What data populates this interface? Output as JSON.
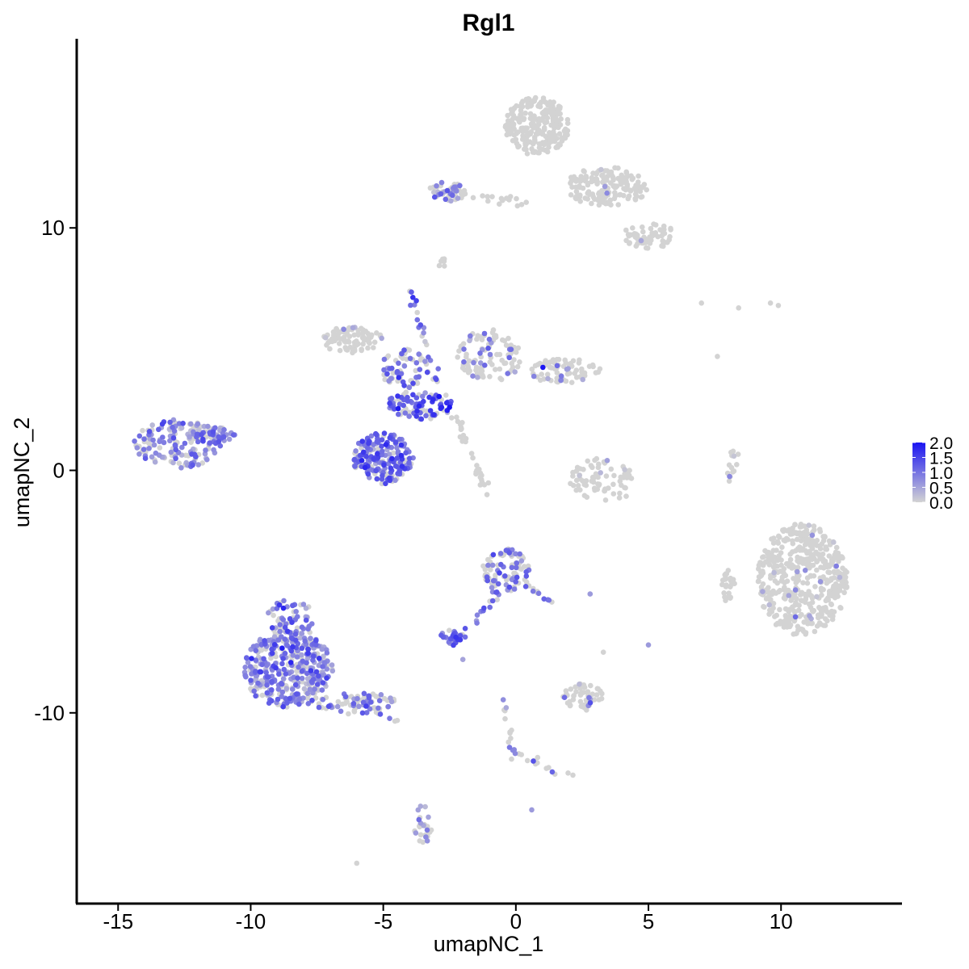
{
  "chart_data": {
    "type": "scatter",
    "title": "Rgl1",
    "xlabel": "umapNC_1",
    "ylabel": "umapNC_2",
    "xlim": [
      -16.5,
      14.5
    ],
    "ylim": [
      -17.8,
      17.8
    ],
    "x_ticks": [
      -15,
      -10,
      -5,
      0,
      5,
      10
    ],
    "y_ticks": [
      -10,
      0,
      10
    ],
    "x_tick_labels": [
      "-15",
      "-10",
      "-5",
      "0",
      "5",
      "10"
    ],
    "y_tick_labels": [
      "-10",
      "0",
      "10"
    ],
    "grid": false,
    "legend_placement": "right",
    "colorbar": {
      "min": 0.0,
      "max": 2.0,
      "low_color": "#d3d3d3",
      "high_color": "#1a14f2",
      "tick_values": [
        2.0,
        1.5,
        1.0,
        0.5,
        0.0
      ],
      "tick_labels": [
        "2.0",
        "1.5",
        "1.0",
        "0.5",
        "0.0"
      ]
    },
    "clusters": [
      {
        "cx": -12.7,
        "cy": 1.1,
        "rx": 1.7,
        "ry": 1.0,
        "n": 160,
        "expr_frac": 0.7,
        "expr_mean": 0.8,
        "shape": "blob"
      },
      {
        "cx": -11.4,
        "cy": 1.5,
        "rx": 0.8,
        "ry": 0.35,
        "n": 35,
        "expr_frac": 0.8,
        "expr_mean": 0.9,
        "shape": "blob"
      },
      {
        "cx": -8.6,
        "cy": -8.2,
        "rx": 1.7,
        "ry": 1.6,
        "n": 380,
        "expr_frac": 0.72,
        "expr_mean": 0.85,
        "shape": "blob"
      },
      {
        "cx": -8.5,
        "cy": -6.2,
        "rx": 0.9,
        "ry": 0.9,
        "n": 60,
        "expr_frac": 0.6,
        "expr_mean": 0.8,
        "shape": "blob"
      },
      {
        "cx": -6.0,
        "cy": -9.6,
        "rx": 1.6,
        "ry": 0.45,
        "n": 70,
        "expr_frac": 0.5,
        "expr_mean": 0.8,
        "shape": "blob"
      },
      {
        "cx": -5.0,
        "cy": 0.5,
        "rx": 1.15,
        "ry": 1.05,
        "n": 200,
        "expr_frac": 0.75,
        "expr_mean": 1.1,
        "shape": "blob"
      },
      {
        "cx": -3.6,
        "cy": 2.7,
        "rx": 1.3,
        "ry": 0.6,
        "n": 90,
        "expr_frac": 0.7,
        "expr_mean": 1.3,
        "shape": "blob"
      },
      {
        "cx": -4.2,
        "cy": 4.2,
        "rx": 0.9,
        "ry": 0.8,
        "n": 70,
        "expr_frac": 0.45,
        "expr_mean": 1.0,
        "shape": "blob"
      },
      {
        "cx": -6.2,
        "cy": 5.4,
        "rx": 1.2,
        "ry": 0.55,
        "n": 90,
        "expr_frac": 0.05,
        "expr_mean": 0.5,
        "shape": "blob"
      },
      {
        "cx": -1.0,
        "cy": 4.7,
        "rx": 1.2,
        "ry": 1.1,
        "n": 100,
        "expr_frac": 0.2,
        "expr_mean": 0.7,
        "shape": "blob"
      },
      {
        "cx": 1.8,
        "cy": 4.1,
        "rx": 1.4,
        "ry": 0.5,
        "n": 70,
        "expr_frac": 0.1,
        "expr_mean": 0.6,
        "shape": "blob"
      },
      {
        "cx": 0.8,
        "cy": 14.2,
        "rx": 1.2,
        "ry": 1.2,
        "n": 230,
        "expr_frac": 0.0,
        "expr_mean": 0.5,
        "shape": "blob"
      },
      {
        "cx": 3.4,
        "cy": 11.7,
        "rx": 1.6,
        "ry": 0.8,
        "n": 160,
        "expr_frac": 0.02,
        "expr_mean": 0.5,
        "shape": "blob"
      },
      {
        "cx": 5.0,
        "cy": 9.7,
        "rx": 1.0,
        "ry": 0.55,
        "n": 60,
        "expr_frac": 0.02,
        "expr_mean": 0.5,
        "shape": "blob"
      },
      {
        "cx": -2.6,
        "cy": 11.5,
        "rx": 0.7,
        "ry": 0.4,
        "n": 40,
        "expr_frac": 0.5,
        "expr_mean": 0.8,
        "shape": "blob"
      },
      {
        "cx": 10.8,
        "cy": -4.5,
        "rx": 1.7,
        "ry": 2.3,
        "n": 480,
        "expr_frac": 0.04,
        "expr_mean": 0.6,
        "shape": "blob"
      },
      {
        "cx": 8.0,
        "cy": -4.8,
        "rx": 0.25,
        "ry": 0.7,
        "n": 25,
        "expr_frac": 0.0,
        "expr_mean": 0.5,
        "shape": "blob"
      },
      {
        "cx": 3.3,
        "cy": -0.4,
        "rx": 1.3,
        "ry": 0.9,
        "n": 75,
        "expr_frac": 0.04,
        "expr_mean": 0.5,
        "shape": "blob"
      },
      {
        "cx": -0.4,
        "cy": -4.1,
        "rx": 0.9,
        "ry": 0.9,
        "n": 90,
        "expr_frac": 0.55,
        "expr_mean": 1.0,
        "shape": "blob"
      },
      {
        "cx": -2.4,
        "cy": -6.9,
        "rx": 0.5,
        "ry": 0.35,
        "n": 30,
        "expr_frac": 0.7,
        "expr_mean": 1.1,
        "shape": "blob"
      },
      {
        "cx": 2.5,
        "cy": -9.3,
        "rx": 0.8,
        "ry": 0.6,
        "n": 55,
        "expr_frac": 0.1,
        "expr_mean": 0.6,
        "shape": "blob"
      },
      {
        "cx": -3.5,
        "cy": -14.8,
        "rx": 0.35,
        "ry": 0.55,
        "n": 20,
        "expr_frac": 0.3,
        "expr_mean": 0.6,
        "shape": "blob"
      }
    ],
    "trails": [
      {
        "from": [
          -2.3,
          2.3
        ],
        "to": [
          -1.1,
          -0.9
        ],
        "n": 30,
        "expr_frac": 0.0,
        "expr_mean": 0.5
      },
      {
        "from": [
          -3.0,
          3.5
        ],
        "to": [
          -4.0,
          7.5
        ],
        "n": 22,
        "expr_frac": 0.6,
        "expr_mean": 1.1
      },
      {
        "from": [
          -2.9,
          11.5
        ],
        "to": [
          0.5,
          11.0
        ],
        "n": 25,
        "expr_frac": 0.05,
        "expr_mean": 0.5
      },
      {
        "from": [
          -0.3,
          -4.6
        ],
        "to": [
          -2.0,
          -6.7
        ],
        "n": 15,
        "expr_frac": 0.8,
        "expr_mean": 1.0
      },
      {
        "from": [
          0.3,
          -4.6
        ],
        "to": [
          1.3,
          -5.5
        ],
        "n": 12,
        "expr_frac": 0.7,
        "expr_mean": 1.1
      },
      {
        "from": [
          -0.5,
          -9.2
        ],
        "to": [
          0.0,
          -12.0
        ],
        "n": 15,
        "expr_frac": 0.3,
        "expr_mean": 0.6
      },
      {
        "from": [
          0.0,
          -11.7
        ],
        "to": [
          2.3,
          -12.7
        ],
        "n": 14,
        "expr_frac": 0.25,
        "expr_mean": 0.6
      },
      {
        "from": [
          8.1,
          -0.5
        ],
        "to": [
          8.3,
          1.0
        ],
        "n": 14,
        "expr_frac": 0.2,
        "expr_mean": 0.7
      },
      {
        "from": [
          -4.4,
          -10.5
        ],
        "to": [
          -5.8,
          -9.5
        ],
        "n": 12,
        "expr_frac": 0.6,
        "expr_mean": 0.9
      },
      {
        "from": [
          -3.6,
          -13.7
        ],
        "to": [
          -3.3,
          -15.2
        ],
        "n": 10,
        "expr_frac": 0.4,
        "expr_mean": 0.6
      },
      {
        "from": [
          -2.7,
          8.8
        ],
        "to": [
          -2.8,
          8.4
        ],
        "n": 6,
        "expr_frac": 0.0,
        "expr_mean": 0.5
      }
    ],
    "points": [
      {
        "x": -6.0,
        "y": -16.2,
        "v": 0.0
      },
      {
        "x": 7.0,
        "y": 6.9,
        "v": 0.0
      },
      {
        "x": 8.4,
        "y": 6.7,
        "v": 0.0
      },
      {
        "x": 9.6,
        "y": 6.9,
        "v": 0.0
      },
      {
        "x": 9.9,
        "y": 6.8,
        "v": 0.0
      },
      {
        "x": 7.6,
        "y": 4.7,
        "v": 0.0
      },
      {
        "x": 2.8,
        "y": -5.1,
        "v": 0.6
      },
      {
        "x": 5.0,
        "y": -7.2,
        "v": 0.6
      },
      {
        "x": 0.6,
        "y": -14.0,
        "v": 0.6
      },
      {
        "x": 3.3,
        "y": -7.5,
        "v": 0.0
      },
      {
        "x": -2.0,
        "y": -7.8,
        "v": 0.5
      },
      {
        "x": -3.3,
        "y": -14.3,
        "v": 0.5
      },
      {
        "x": -2.5,
        "y": 2.6,
        "v": 2.0
      },
      {
        "x": -2.8,
        "y": 2.6,
        "v": 1.8
      },
      {
        "x": -3.1,
        "y": 2.3,
        "v": 1.7
      }
    ]
  }
}
